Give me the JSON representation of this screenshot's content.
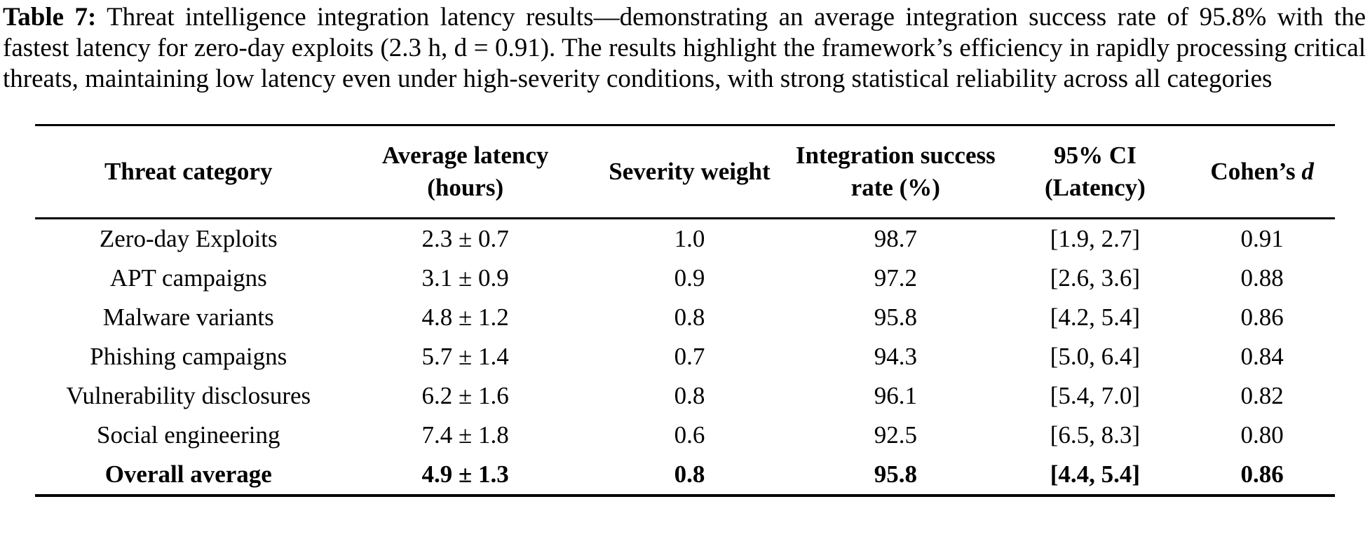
{
  "page": {
    "background_color": "#ffffff",
    "text_color": "#000000"
  },
  "caption": {
    "label": "Table 7:",
    "text": "Threat intelligence integration latency results—demonstrating an average integration success rate of 95.8% with the fastest latency for zero-day exploits (2.3 h, d = 0.91). The results highlight the framework’s efficiency in rapidly processing critical threats, maintaining low latency even under high-severity conditions, with strong statistical reliability across all categories"
  },
  "table": {
    "columns": [
      {
        "label": "Threat category"
      },
      {
        "label": "Average latency (hours)"
      },
      {
        "label": "Severity weight"
      },
      {
        "label": "Integration success rate (%)"
      },
      {
        "label": "95% CI (Latency)"
      },
      {
        "label": "Cohen’s",
        "italic_symbol": "d"
      }
    ],
    "rows": [
      {
        "category": "Zero-day Exploits",
        "latency": "2.3 ± 0.7",
        "severity": "1.0",
        "success": "98.7",
        "ci": "[1.9, 2.7]",
        "cohens_d": "0.91"
      },
      {
        "category": "APT campaigns",
        "latency": "3.1 ± 0.9",
        "severity": "0.9",
        "success": "97.2",
        "ci": "[2.6, 3.6]",
        "cohens_d": "0.88"
      },
      {
        "category": "Malware variants",
        "latency": "4.8 ± 1.2",
        "severity": "0.8",
        "success": "95.8",
        "ci": "[4.2, 5.4]",
        "cohens_d": "0.86"
      },
      {
        "category": "Phishing campaigns",
        "latency": "5.7 ± 1.4",
        "severity": "0.7",
        "success": "94.3",
        "ci": "[5.0, 6.4]",
        "cohens_d": "0.84"
      },
      {
        "category": "Vulnerability disclosures",
        "latency": "6.2 ± 1.6",
        "severity": "0.8",
        "success": "96.1",
        "ci": "[5.4, 7.0]",
        "cohens_d": "0.82"
      },
      {
        "category": "Social engineering",
        "latency": "7.4 ± 1.8",
        "severity": "0.6",
        "success": "92.5",
        "ci": "[6.5, 8.3]",
        "cohens_d": "0.80"
      },
      {
        "category": "Overall average",
        "latency": "4.9 ± 1.3",
        "severity": "0.8",
        "success": "95.8",
        "ci": "[4.4, 5.4]",
        "cohens_d": "0.86"
      }
    ]
  }
}
